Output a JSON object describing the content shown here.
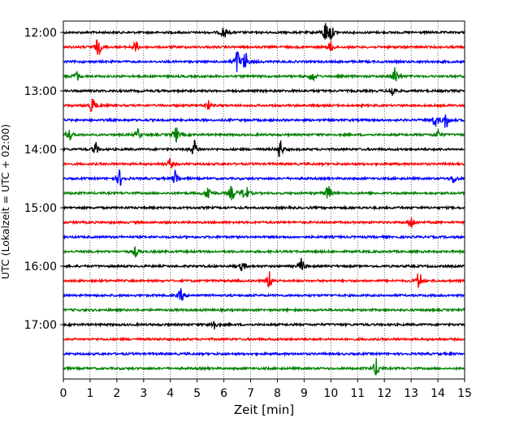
{
  "chart_data": {
    "type": "line",
    "title": "",
    "xlabel": "Zeit  [min]",
    "ylabel": "UTC (Lokalzeit = UTC + 02:00)",
    "xlim": [
      0,
      15
    ],
    "x_ticks": [
      "0",
      "1",
      "2",
      "3",
      "4",
      "5",
      "6",
      "7",
      "8",
      "9",
      "10",
      "11",
      "12",
      "13",
      "14",
      "15"
    ],
    "y_ticks": [
      "12:00",
      "13:00",
      "14:00",
      "15:00",
      "16:00",
      "17:00"
    ],
    "grid": "vertical-dotted",
    "trace_colors": [
      "#000000",
      "#ff0000",
      "#0000ff",
      "#008000"
    ],
    "series": [
      {
        "start": "12:00",
        "color": "#000000",
        "events": [
          [
            6,
            0.8
          ],
          [
            9.8,
            1.2
          ],
          [
            10,
            0.9
          ]
        ]
      },
      {
        "start": "12:15",
        "color": "#ff0000",
        "events": [
          [
            1.3,
            1.1
          ],
          [
            2.7,
            0.7
          ],
          [
            10,
            0.7
          ]
        ]
      },
      {
        "start": "12:30",
        "color": "#0000ff",
        "events": [
          [
            6.5,
            1.4
          ],
          [
            6.8,
            1.1
          ]
        ]
      },
      {
        "start": "12:45",
        "color": "#008000",
        "events": [
          [
            0.5,
            0.6
          ],
          [
            9.3,
            0.7
          ],
          [
            12.4,
            1.1
          ]
        ]
      },
      {
        "start": "13:00",
        "color": "#000000",
        "events": [
          [
            12.3,
            0.8
          ]
        ]
      },
      {
        "start": "13:15",
        "color": "#ff0000",
        "events": [
          [
            1.1,
            1.1
          ],
          [
            5.4,
            0.6
          ]
        ]
      },
      {
        "start": "13:30",
        "color": "#0000ff",
        "events": [
          [
            13.9,
            0.9
          ],
          [
            14.3,
            1.0
          ]
        ]
      },
      {
        "start": "13:45",
        "color": "#008000",
        "events": [
          [
            0.2,
            0.9
          ],
          [
            2.8,
            0.6
          ],
          [
            4.2,
            1.0
          ],
          [
            14,
            0.6
          ]
        ]
      },
      {
        "start": "14:00",
        "color": "#000000",
        "events": [
          [
            1.2,
            0.8
          ],
          [
            4.9,
            1.0
          ],
          [
            8.1,
            1.2
          ]
        ]
      },
      {
        "start": "14:15",
        "color": "#ff0000",
        "events": [
          [
            4.0,
            0.6
          ]
        ]
      },
      {
        "start": "14:30",
        "color": "#0000ff",
        "events": [
          [
            2.1,
            1.0
          ],
          [
            4.2,
            1.0
          ],
          [
            14.6,
            0.6
          ]
        ]
      },
      {
        "start": "14:45",
        "color": "#008000",
        "events": [
          [
            5.4,
            1.0
          ],
          [
            6.3,
            0.9
          ],
          [
            6.8,
            1.2
          ],
          [
            9.9,
            1.0
          ]
        ]
      },
      {
        "start": "15:00",
        "color": "#000000",
        "events": []
      },
      {
        "start": "15:15",
        "color": "#ff0000",
        "events": [
          [
            13.0,
            0.8
          ]
        ]
      },
      {
        "start": "15:30",
        "color": "#0000ff",
        "events": []
      },
      {
        "start": "15:45",
        "color": "#008000",
        "events": [
          [
            2.7,
            0.6
          ]
        ]
      },
      {
        "start": "16:00",
        "color": "#000000",
        "events": [
          [
            6.7,
            0.6
          ],
          [
            8.9,
            0.9
          ]
        ]
      },
      {
        "start": "16:15",
        "color": "#ff0000",
        "events": [
          [
            7.7,
            1.1
          ],
          [
            13.3,
            1.2
          ]
        ]
      },
      {
        "start": "16:30",
        "color": "#0000ff",
        "events": [
          [
            4.4,
            0.8
          ]
        ]
      },
      {
        "start": "16:45",
        "color": "#008000",
        "events": []
      },
      {
        "start": "17:00",
        "color": "#000000",
        "events": [
          [
            5.6,
            0.8
          ]
        ]
      },
      {
        "start": "17:15",
        "color": "#ff0000",
        "events": []
      },
      {
        "start": "17:30",
        "color": "#0000ff",
        "events": []
      },
      {
        "start": "17:45",
        "color": "#008000",
        "events": [
          [
            11.7,
            1.1
          ]
        ]
      }
    ]
  }
}
